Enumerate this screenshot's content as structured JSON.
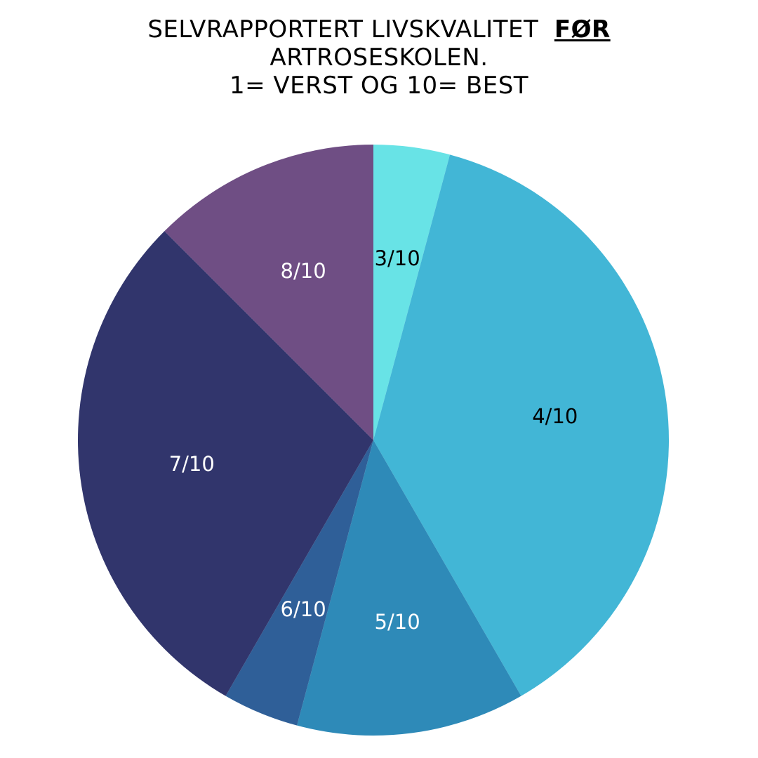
{
  "title": {
    "line1_prefix": "SELVRAPPORTERT LIVSKVALITET",
    "line1_emphasis": "FØR",
    "line2": "ARTROSESKOLEN.",
    "line3": "1= VERST OG 10= BEST"
  },
  "chart_data": {
    "type": "pie",
    "title": "SELVRAPPORTERT LIVSKVALITET FØR ARTROSESKOLEN. 1= VERST OG 10= BEST",
    "slices": [
      {
        "label": "3/10",
        "value": 4.17,
        "color": "#68E3E6",
        "label_color": "#000000"
      },
      {
        "label": "4/10",
        "value": 37.5,
        "color": "#42B6D6",
        "label_color": "#000000"
      },
      {
        "label": "5/10",
        "value": 12.5,
        "color": "#2E8AB8",
        "label_color": "#FFFFFF"
      },
      {
        "label": "6/10",
        "value": 4.17,
        "color": "#2F5F98",
        "label_color": "#FFFFFF"
      },
      {
        "label": "7/10",
        "value": 29.17,
        "color": "#31356C",
        "label_color": "#FFFFFF"
      },
      {
        "label": "8/10",
        "value": 12.5,
        "color": "#6F4E84",
        "label_color": "#FFFFFF"
      }
    ],
    "start": "top",
    "direction": "clockwise",
    "legend": "none"
  }
}
